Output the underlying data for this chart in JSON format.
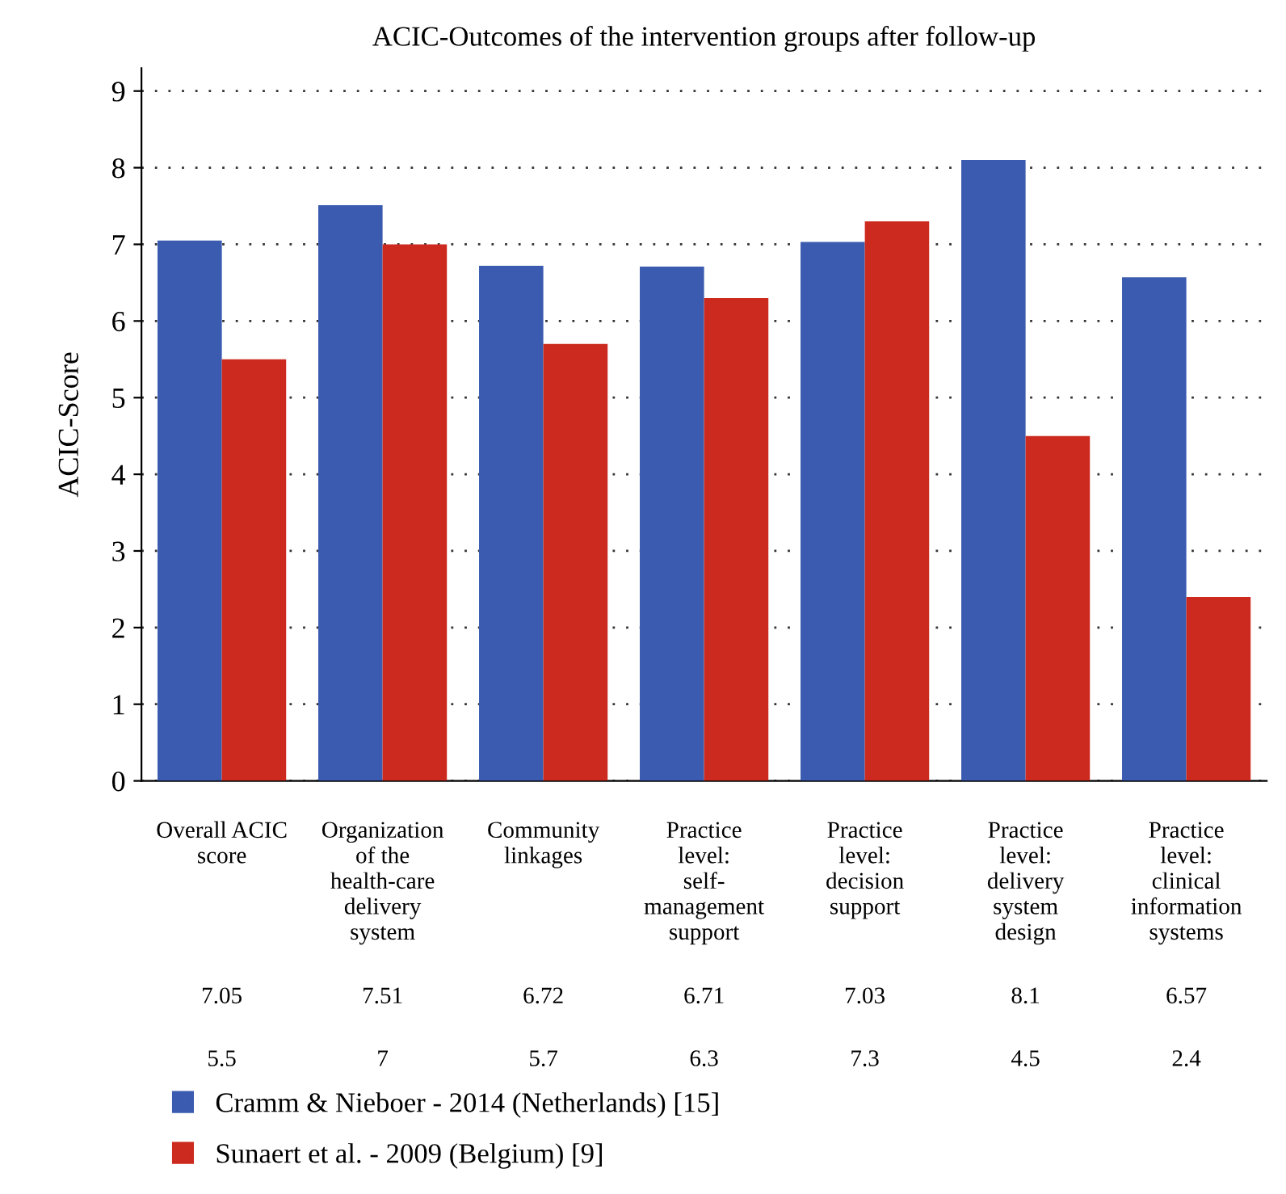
{
  "chart_data": {
    "type": "bar",
    "title": "ACIC-Outcomes of the intervention groups after follow-up",
    "ylabel": "ACIC-Score",
    "categories": [
      "Overall ACIC\nscore",
      "Organization\nof the\nhealth-care\ndelivery\nsystem",
      "Community\nlinkages",
      "Practice\nlevel:\nself-\nmanagement\nsupport",
      "Practice\nlevel:\ndecision\nsupport",
      "Practice\nlevel:\ndelivery\nsystem\ndesign",
      "Practice\nlevel:\nclinical\ninformation\nsystems"
    ],
    "series": [
      {
        "name": "Cramm & Nieboer - 2014 (Netherlands) [15]",
        "color": "#3a5bb0",
        "values": [
          7.05,
          7.51,
          6.72,
          6.71,
          7.03,
          8.1,
          6.57
        ]
      },
      {
        "name": "Sunaert et al. - 2009 (Belgium) [9]",
        "color": "#cc2a1e",
        "values": [
          5.5,
          7,
          5.7,
          6.3,
          7.3,
          4.5,
          2.4
        ]
      }
    ],
    "ylim": [
      0,
      9.3
    ],
    "yticks": [
      0,
      1,
      2,
      3,
      4,
      5,
      6,
      7,
      8,
      9
    ],
    "grid": "y",
    "legend": "bottom left",
    "data_labels": true
  }
}
